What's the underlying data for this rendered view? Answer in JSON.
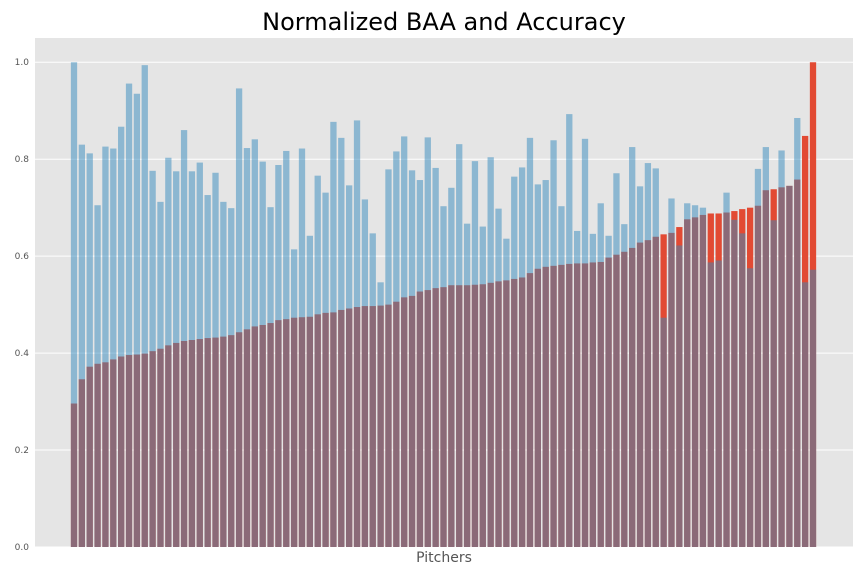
{
  "chart_data": {
    "type": "bar",
    "title": "Normalized BAA and Accuracy",
    "xlabel": "Pitchers",
    "ylabel": "",
    "ylim": [
      0,
      1.05
    ],
    "yticks": [
      "0.0",
      "0.2",
      "0.4",
      "0.6",
      "0.8",
      "1.0"
    ],
    "grid": true,
    "overlay": "Accuracy bars are drawn semi-transparent over BAA bars; the overlap appears purple",
    "colors": {
      "background": "#e5e5e5",
      "grid": "#ffffff",
      "baa": "#e24a33",
      "accuracy": "#348abd"
    },
    "series": [
      {
        "key": "baa",
        "values": [
          0.296,
          0.346,
          0.372,
          0.378,
          0.381,
          0.387,
          0.393,
          0.396,
          0.397,
          0.399,
          0.404,
          0.409,
          0.416,
          0.421,
          0.425,
          0.427,
          0.429,
          0.431,
          0.432,
          0.434,
          0.437,
          0.443,
          0.449,
          0.455,
          0.458,
          0.462,
          0.468,
          0.47,
          0.473,
          0.474,
          0.475,
          0.48,
          0.483,
          0.484,
          0.489,
          0.492,
          0.495,
          0.497,
          0.497,
          0.498,
          0.5,
          0.506,
          0.515,
          0.518,
          0.527,
          0.53,
          0.534,
          0.536,
          0.54,
          0.54,
          0.54,
          0.541,
          0.542,
          0.545,
          0.548,
          0.55,
          0.553,
          0.556,
          0.565,
          0.574,
          0.578,
          0.58,
          0.582,
          0.584,
          0.585,
          0.585,
          0.587,
          0.588,
          0.597,
          0.603,
          0.609,
          0.617,
          0.628,
          0.633,
          0.64,
          0.645,
          0.648,
          0.66,
          0.676,
          0.68,
          0.685,
          0.688,
          0.688,
          0.69,
          0.693,
          0.697,
          0.7,
          0.704,
          0.736,
          0.738,
          0.742,
          0.745,
          0.758,
          0.848,
          1.0
        ]
      },
      {
        "key": "accuracy",
        "values": [
          1.0,
          0.83,
          0.812,
          0.705,
          0.826,
          0.822,
          0.867,
          0.956,
          0.935,
          0.994,
          0.776,
          0.712,
          0.803,
          0.775,
          0.86,
          0.775,
          0.793,
          0.726,
          0.772,
          0.712,
          0.699,
          0.946,
          0.823,
          0.841,
          0.795,
          0.701,
          0.788,
          0.817,
          0.614,
          0.822,
          0.642,
          0.766,
          0.731,
          0.877,
          0.844,
          0.746,
          0.88,
          0.717,
          0.647,
          0.546,
          0.779,
          0.816,
          0.847,
          0.777,
          0.757,
          0.845,
          0.782,
          0.703,
          0.741,
          0.831,
          0.667,
          0.796,
          0.661,
          0.804,
          0.698,
          0.636,
          0.764,
          0.783,
          0.844,
          0.748,
          0.757,
          0.839,
          0.703,
          0.893,
          0.652,
          0.842,
          0.646,
          0.709,
          0.642,
          0.771,
          0.666,
          0.825,
          0.744,
          0.792,
          0.781,
          0.473,
          0.719,
          0.622,
          0.709,
          0.705,
          0.7,
          0.587,
          0.591,
          0.731,
          0.675,
          0.647,
          0.575,
          0.78,
          0.825,
          0.674,
          0.818,
          0.745,
          0.885,
          0.546,
          0.572
        ]
      }
    ]
  }
}
